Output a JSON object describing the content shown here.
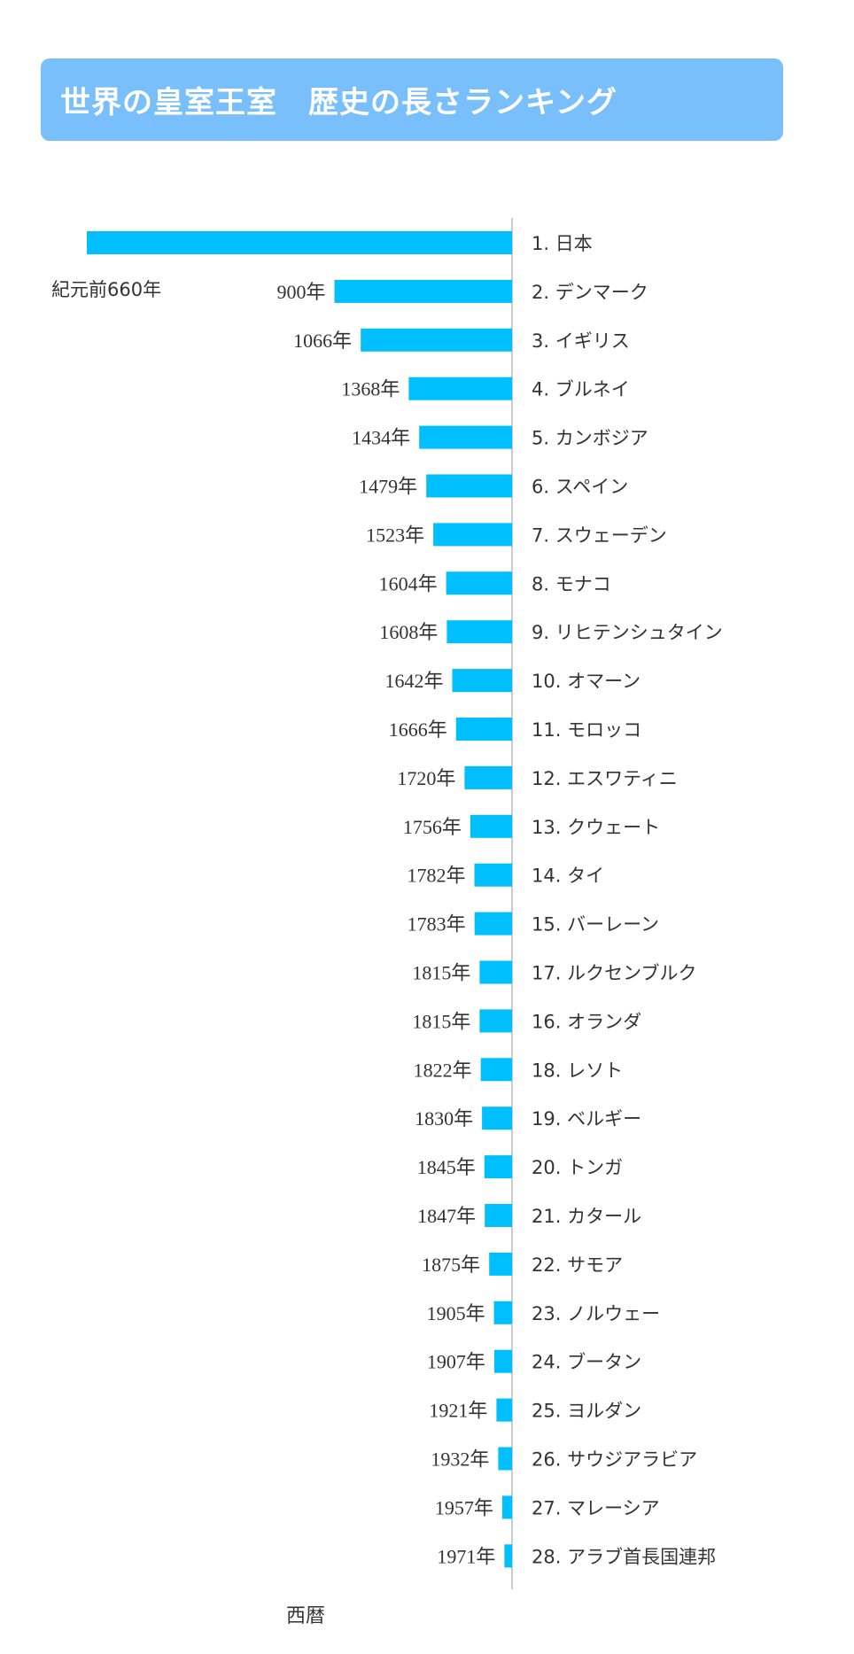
{
  "header": {
    "title": "世界の皇室王室　歴史の長さランキング"
  },
  "chart_data": {
    "type": "bar",
    "orientation": "horizontal",
    "title": "世界の皇室王室　歴史の長さランキング",
    "xlabel": "西暦",
    "bar_color": "#00bfff",
    "title_bg_color": "#79bffc",
    "xlim": [
      -660,
      2019
    ],
    "rows": [
      {
        "country": "1. 日本",
        "year": -660,
        "year_label": "紀元前660年"
      },
      {
        "country": "2. デンマーク",
        "year": 900,
        "year_label": "900年"
      },
      {
        "country": "3. イギリス",
        "year": 1066,
        "year_label": "1066年"
      },
      {
        "country": "4. ブルネイ",
        "year": 1368,
        "year_label": "1368年"
      },
      {
        "country": "5. カンボジア",
        "year": 1434,
        "year_label": "1434年"
      },
      {
        "country": "6. スペイン",
        "year": 1479,
        "year_label": "1479年"
      },
      {
        "country": "7. スウェーデン",
        "year": 1523,
        "year_label": "1523年"
      },
      {
        "country": "8. モナコ",
        "year": 1604,
        "year_label": "1604年"
      },
      {
        "country": "9. リヒテンシュタイン",
        "year": 1608,
        "year_label": "1608年"
      },
      {
        "country": "10. オマーン",
        "year": 1642,
        "year_label": "1642年"
      },
      {
        "country": "11. モロッコ",
        "year": 1666,
        "year_label": "1666年"
      },
      {
        "country": "12. エスワティニ",
        "year": 1720,
        "year_label": "1720年"
      },
      {
        "country": "13. クウェート",
        "year": 1756,
        "year_label": "1756年"
      },
      {
        "country": "14. タイ",
        "year": 1782,
        "year_label": "1782年"
      },
      {
        "country": "15. バーレーン",
        "year": 1783,
        "year_label": "1783年"
      },
      {
        "country": "17. ルクセンブルク",
        "year": 1815,
        "year_label": "1815年"
      },
      {
        "country": "16. オランダ",
        "year": 1815,
        "year_label": "1815年"
      },
      {
        "country": "18. レソト",
        "year": 1822,
        "year_label": "1822年"
      },
      {
        "country": "19. ベルギー",
        "year": 1830,
        "year_label": "1830年"
      },
      {
        "country": "20. トンガ",
        "year": 1845,
        "year_label": "1845年"
      },
      {
        "country": "21. カタール",
        "year": 1847,
        "year_label": "1847年"
      },
      {
        "country": "22. サモア",
        "year": 1875,
        "year_label": "1875年"
      },
      {
        "country": "23. ノルウェー",
        "year": 1905,
        "year_label": "1905年"
      },
      {
        "country": "24. ブータン",
        "year": 1907,
        "year_label": "1907年"
      },
      {
        "country": "25. ヨルダン",
        "year": 1921,
        "year_label": "1921年"
      },
      {
        "country": "26. サウジアラビア",
        "year": 1932,
        "year_label": "1932年"
      },
      {
        "country": "27. マレーシア",
        "year": 1957,
        "year_label": "1957年"
      },
      {
        "country": "28. アラブ首長国連邦",
        "year": 1971,
        "year_label": "1971年"
      }
    ]
  }
}
